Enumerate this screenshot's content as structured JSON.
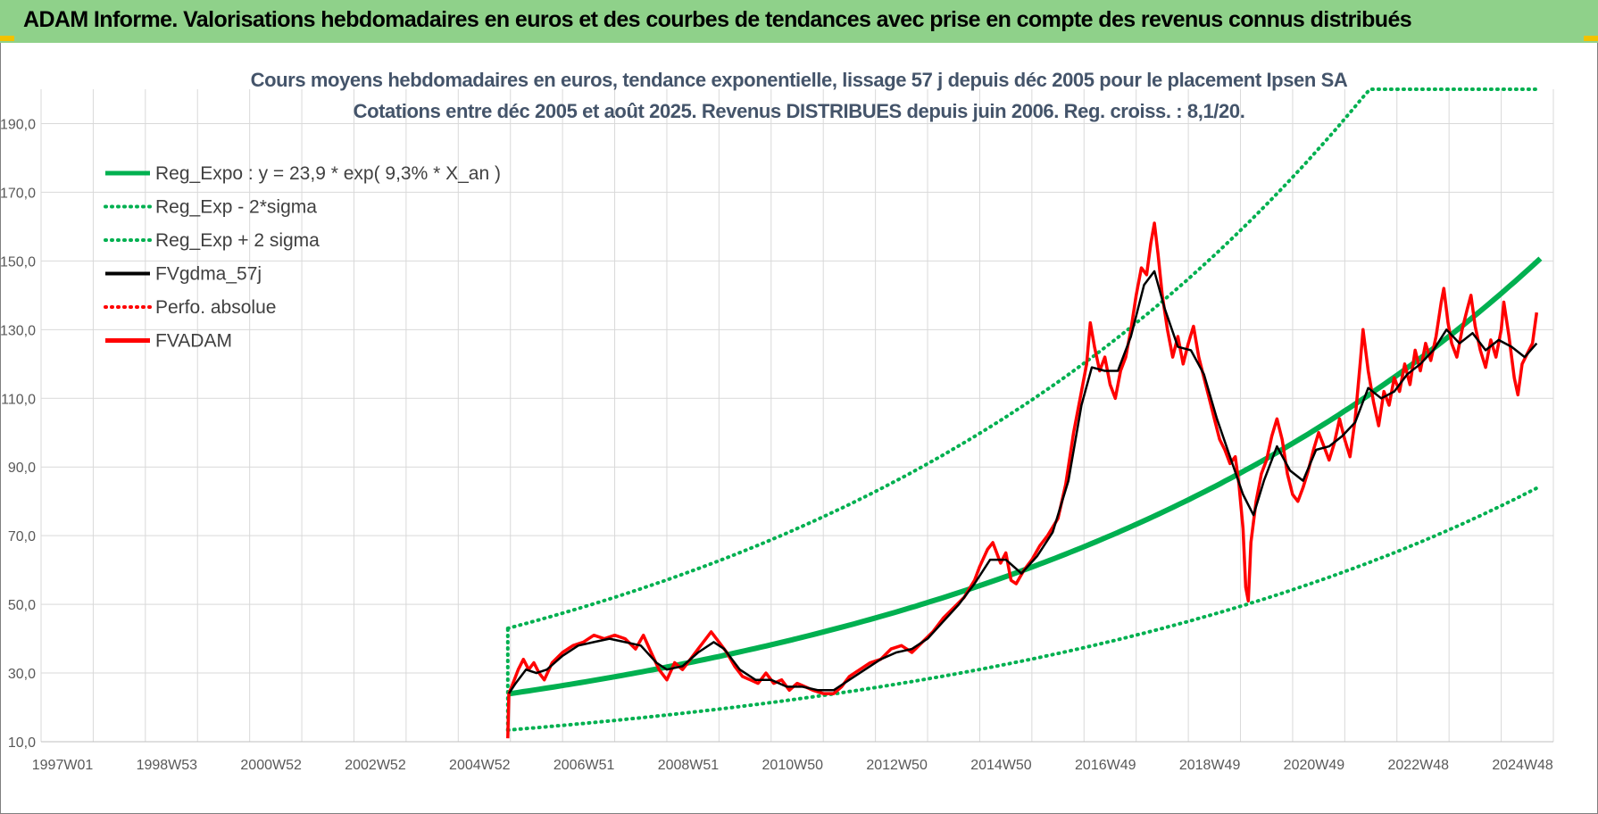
{
  "header": {
    "title": "ADAM Informe. Valorisations hebdomadaires en euros et des courbes de tendances avec prise en compte des revenus connus distribués"
  },
  "colors": {
    "banner": "#8fd18a",
    "trend": "#00b050",
    "smooth": "#000000",
    "price": "#ff0000",
    "grid": "#d9d9d9"
  },
  "chart_data": {
    "type": "line",
    "title_line1": "Cours moyens hebdomadaires en euros, tendance exponentielle, lissage 57 j depuis déc 2005 pour le placement Ipsen SA",
    "title_line2": "Cotations entre déc 2005 et août 2025. Revenus DISTRIBUES depuis juin 2006. Reg. croiss. : 8,1/20.",
    "ylim": [
      10,
      200
    ],
    "y_ticks": [
      "10,0",
      "30,0",
      "50,0",
      "70,0",
      "90,0",
      "110,0",
      "130,0",
      "150,0",
      "170,0",
      "190,0"
    ],
    "x_tick_labels": [
      "1997W01",
      "1998W53",
      "2000W52",
      "2002W52",
      "2004W52",
      "2006W51",
      "2008W51",
      "2010W50",
      "2012W50",
      "2014W50",
      "2016W49",
      "2018W49",
      "2020W49",
      "2022W48",
      "2024W48"
    ],
    "x_range": [
      1997.0,
      2026.0
    ],
    "grid": true,
    "legend_position": "top-left",
    "legend": [
      {
        "label": "Reg_Expo : y = 23,9 * exp( 9,3% *  X_an )",
        "color": "#00b050",
        "style": "solid-thick"
      },
      {
        "label": "Reg_Exp - 2*sigma",
        "color": "#00b050",
        "style": "dotted"
      },
      {
        "label": "Reg_Exp + 2 sigma",
        "color": "#00b050",
        "style": "dotted"
      },
      {
        "label": "FVgdma_57j",
        "color": "#000000",
        "style": "solid"
      },
      {
        "label": "Perfo. absolue",
        "color": "#ff0000",
        "style": "dotted"
      },
      {
        "label": "FVADAM",
        "color": "#ff0000",
        "style": "solid-thick"
      }
    ],
    "regression": {
      "a": 23.9,
      "b": 0.093,
      "start_year": 2005.95,
      "end_year": 2025.75,
      "upper_factor": 1.8,
      "lower_factor": 0.56,
      "upper_cap": 200
    },
    "series": [
      {
        "name": "FVADAM",
        "points": [
          [
            2005.95,
            11
          ],
          [
            2005.97,
            24
          ],
          [
            2006.05,
            27
          ],
          [
            2006.15,
            31
          ],
          [
            2006.25,
            34
          ],
          [
            2006.35,
            31
          ],
          [
            2006.45,
            33
          ],
          [
            2006.55,
            30
          ],
          [
            2006.65,
            28
          ],
          [
            2006.8,
            33
          ],
          [
            2007.0,
            36
          ],
          [
            2007.2,
            38
          ],
          [
            2007.4,
            39
          ],
          [
            2007.6,
            41
          ],
          [
            2007.8,
            40
          ],
          [
            2008.0,
            41
          ],
          [
            2008.2,
            40
          ],
          [
            2008.4,
            37
          ],
          [
            2008.55,
            41
          ],
          [
            2008.7,
            36
          ],
          [
            2008.85,
            31
          ],
          [
            2009.0,
            28
          ],
          [
            2009.15,
            33
          ],
          [
            2009.3,
            31
          ],
          [
            2009.45,
            34
          ],
          [
            2009.6,
            37
          ],
          [
            2009.75,
            40
          ],
          [
            2009.85,
            42
          ],
          [
            2010.0,
            39
          ],
          [
            2010.15,
            36
          ],
          [
            2010.3,
            32
          ],
          [
            2010.45,
            29
          ],
          [
            2010.6,
            28
          ],
          [
            2010.75,
            27
          ],
          [
            2010.9,
            30
          ],
          [
            2011.05,
            27
          ],
          [
            2011.2,
            28
          ],
          [
            2011.35,
            25
          ],
          [
            2011.5,
            27
          ],
          [
            2011.65,
            26
          ],
          [
            2011.8,
            25
          ],
          [
            2012.0,
            24
          ],
          [
            2012.2,
            24
          ],
          [
            2012.35,
            26
          ],
          [
            2012.5,
            29
          ],
          [
            2012.7,
            31
          ],
          [
            2012.9,
            33
          ],
          [
            2013.1,
            34
          ],
          [
            2013.3,
            37
          ],
          [
            2013.5,
            38
          ],
          [
            2013.7,
            36
          ],
          [
            2013.9,
            39
          ],
          [
            2014.1,
            42
          ],
          [
            2014.3,
            46
          ],
          [
            2014.5,
            49
          ],
          [
            2014.7,
            52
          ],
          [
            2014.9,
            57
          ],
          [
            2015.0,
            61
          ],
          [
            2015.15,
            66
          ],
          [
            2015.25,
            68
          ],
          [
            2015.4,
            62
          ],
          [
            2015.5,
            65
          ],
          [
            2015.6,
            57
          ],
          [
            2015.7,
            56
          ],
          [
            2015.85,
            60
          ],
          [
            2016.0,
            63
          ],
          [
            2016.15,
            67
          ],
          [
            2016.3,
            70
          ],
          [
            2016.5,
            75
          ],
          [
            2016.65,
            85
          ],
          [
            2016.8,
            100
          ],
          [
            2016.95,
            112
          ],
          [
            2017.05,
            120
          ],
          [
            2017.12,
            132
          ],
          [
            2017.2,
            125
          ],
          [
            2017.3,
            118
          ],
          [
            2017.4,
            122
          ],
          [
            2017.5,
            114
          ],
          [
            2017.6,
            110
          ],
          [
            2017.7,
            118
          ],
          [
            2017.8,
            122
          ],
          [
            2017.9,
            130
          ],
          [
            2018.0,
            140
          ],
          [
            2018.1,
            148
          ],
          [
            2018.2,
            146
          ],
          [
            2018.28,
            155
          ],
          [
            2018.35,
            161
          ],
          [
            2018.42,
            152
          ],
          [
            2018.5,
            140
          ],
          [
            2018.6,
            130
          ],
          [
            2018.7,
            122
          ],
          [
            2018.8,
            128
          ],
          [
            2018.9,
            120
          ],
          [
            2019.0,
            126
          ],
          [
            2019.1,
            131
          ],
          [
            2019.2,
            122
          ],
          [
            2019.3,
            116
          ],
          [
            2019.4,
            110
          ],
          [
            2019.5,
            104
          ],
          [
            2019.6,
            98
          ],
          [
            2019.7,
            95
          ],
          [
            2019.8,
            91
          ],
          [
            2019.9,
            93
          ],
          [
            2019.97,
            85
          ],
          [
            2020.05,
            72
          ],
          [
            2020.1,
            55
          ],
          [
            2020.15,
            51
          ],
          [
            2020.2,
            68
          ],
          [
            2020.3,
            80
          ],
          [
            2020.4,
            88
          ],
          [
            2020.5,
            92
          ],
          [
            2020.6,
            99
          ],
          [
            2020.7,
            104
          ],
          [
            2020.8,
            98
          ],
          [
            2020.9,
            88
          ],
          [
            2021.0,
            82
          ],
          [
            2021.1,
            80
          ],
          [
            2021.2,
            84
          ],
          [
            2021.3,
            89
          ],
          [
            2021.4,
            95
          ],
          [
            2021.5,
            100
          ],
          [
            2021.6,
            96
          ],
          [
            2021.7,
            92
          ],
          [
            2021.8,
            97
          ],
          [
            2021.9,
            104
          ],
          [
            2022.0,
            98
          ],
          [
            2022.1,
            93
          ],
          [
            2022.2,
            104
          ],
          [
            2022.3,
            121
          ],
          [
            2022.35,
            130
          ],
          [
            2022.45,
            118
          ],
          [
            2022.55,
            109
          ],
          [
            2022.65,
            102
          ],
          [
            2022.75,
            112
          ],
          [
            2022.85,
            108
          ],
          [
            2022.95,
            116
          ],
          [
            2023.05,
            112
          ],
          [
            2023.15,
            120
          ],
          [
            2023.25,
            114
          ],
          [
            2023.35,
            124
          ],
          [
            2023.45,
            118
          ],
          [
            2023.55,
            126
          ],
          [
            2023.65,
            121
          ],
          [
            2023.75,
            128
          ],
          [
            2023.85,
            138
          ],
          [
            2023.9,
            142
          ],
          [
            2023.98,
            132
          ],
          [
            2024.05,
            126
          ],
          [
            2024.15,
            122
          ],
          [
            2024.25,
            130
          ],
          [
            2024.35,
            136
          ],
          [
            2024.42,
            140
          ],
          [
            2024.5,
            131
          ],
          [
            2024.6,
            124
          ],
          [
            2024.7,
            119
          ],
          [
            2024.8,
            127
          ],
          [
            2024.9,
            122
          ],
          [
            2025.0,
            130
          ],
          [
            2025.05,
            138
          ],
          [
            2025.15,
            128
          ],
          [
            2025.25,
            116
          ],
          [
            2025.32,
            111
          ],
          [
            2025.4,
            120
          ],
          [
            2025.5,
            123
          ],
          [
            2025.6,
            126
          ],
          [
            2025.68,
            135
          ]
        ]
      },
      {
        "name": "FVgdma_57j",
        "points": [
          [
            2005.97,
            24
          ],
          [
            2006.1,
            27
          ],
          [
            2006.3,
            31
          ],
          [
            2006.5,
            30
          ],
          [
            2006.7,
            31
          ],
          [
            2007.0,
            35
          ],
          [
            2007.3,
            38
          ],
          [
            2007.6,
            39
          ],
          [
            2007.9,
            40
          ],
          [
            2008.2,
            39
          ],
          [
            2008.5,
            38
          ],
          [
            2008.8,
            33
          ],
          [
            2009.0,
            31
          ],
          [
            2009.3,
            32
          ],
          [
            2009.6,
            36
          ],
          [
            2009.9,
            39
          ],
          [
            2010.1,
            37
          ],
          [
            2010.4,
            31
          ],
          [
            2010.7,
            28
          ],
          [
            2011.0,
            28
          ],
          [
            2011.3,
            26
          ],
          [
            2011.6,
            26
          ],
          [
            2011.9,
            25
          ],
          [
            2012.2,
            25
          ],
          [
            2012.5,
            28
          ],
          [
            2012.8,
            31
          ],
          [
            2013.1,
            34
          ],
          [
            2013.4,
            36
          ],
          [
            2013.7,
            37
          ],
          [
            2014.0,
            40
          ],
          [
            2014.3,
            45
          ],
          [
            2014.6,
            50
          ],
          [
            2014.9,
            56
          ],
          [
            2015.2,
            63
          ],
          [
            2015.5,
            63
          ],
          [
            2015.8,
            59
          ],
          [
            2016.1,
            64
          ],
          [
            2016.4,
            71
          ],
          [
            2016.7,
            86
          ],
          [
            2016.95,
            108
          ],
          [
            2017.15,
            119
          ],
          [
            2017.4,
            118
          ],
          [
            2017.65,
            118
          ],
          [
            2017.9,
            128
          ],
          [
            2018.15,
            143
          ],
          [
            2018.35,
            147
          ],
          [
            2018.55,
            136
          ],
          [
            2018.8,
            125
          ],
          [
            2019.05,
            124
          ],
          [
            2019.3,
            117
          ],
          [
            2019.55,
            104
          ],
          [
            2019.8,
            93
          ],
          [
            2020.05,
            82
          ],
          [
            2020.25,
            76
          ],
          [
            2020.45,
            86
          ],
          [
            2020.7,
            96
          ],
          [
            2020.95,
            89
          ],
          [
            2021.2,
            86
          ],
          [
            2021.45,
            95
          ],
          [
            2021.7,
            96
          ],
          [
            2021.95,
            99
          ],
          [
            2022.2,
            103
          ],
          [
            2022.45,
            113
          ],
          [
            2022.7,
            110
          ],
          [
            2022.95,
            112
          ],
          [
            2023.2,
            117
          ],
          [
            2023.45,
            120
          ],
          [
            2023.7,
            124
          ],
          [
            2023.95,
            130
          ],
          [
            2024.2,
            126
          ],
          [
            2024.45,
            129
          ],
          [
            2024.7,
            124
          ],
          [
            2024.95,
            127
          ],
          [
            2025.2,
            125
          ],
          [
            2025.45,
            122
          ],
          [
            2025.68,
            126
          ]
        ]
      }
    ]
  }
}
